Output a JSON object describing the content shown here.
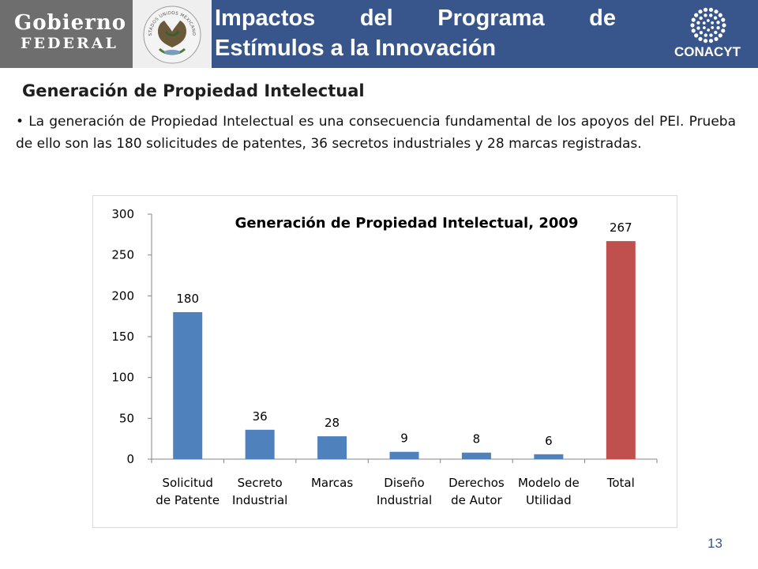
{
  "header": {
    "gobierno_line1": "Gobierno",
    "gobierno_line2": "FEDERAL",
    "seal_text": "ESTADOS UNIDOS MEXICANOS",
    "title_line1_words": [
      "Impactos",
      "del",
      "Programa",
      "de"
    ],
    "title_line2": "Estímulos a la Innovación",
    "conacyt_label": "CONACYT"
  },
  "slide": {
    "subtitle": "Generación de Propiedad Intelectual",
    "bullet": "La generación de Propiedad Intelectual es una consecuencia fundamental de los apoyos del PEI. Prueba de ello son las 180 solicitudes de patentes, 36 secretos industriales y 28 marcas registradas.",
    "page_number": "13"
  },
  "colors": {
    "header_bg": "#39568c",
    "bar_blue": "#4f81bd",
    "bar_red": "#c0504d"
  },
  "chart_data": {
    "type": "bar",
    "title": "Generación de Propiedad Intelectual, 2009",
    "categories": [
      [
        "Solicitud",
        "de Patente"
      ],
      [
        "Secreto",
        "Industrial"
      ],
      [
        "Marcas"
      ],
      [
        "Diseño",
        "Industrial"
      ],
      [
        "Derechos",
        "de Autor"
      ],
      [
        "Modelo de",
        "Utilidad"
      ],
      [
        "Total"
      ]
    ],
    "values": [
      180,
      36,
      28,
      9,
      8,
      6,
      267
    ],
    "bar_colors": [
      "#4f81bd",
      "#4f81bd",
      "#4f81bd",
      "#4f81bd",
      "#4f81bd",
      "#4f81bd",
      "#c0504d"
    ],
    "ylim": [
      0,
      300
    ],
    "yticks": [
      0,
      50,
      100,
      150,
      200,
      250,
      300
    ],
    "grid": false,
    "legend": "none",
    "xlabel": "",
    "ylabel": ""
  }
}
